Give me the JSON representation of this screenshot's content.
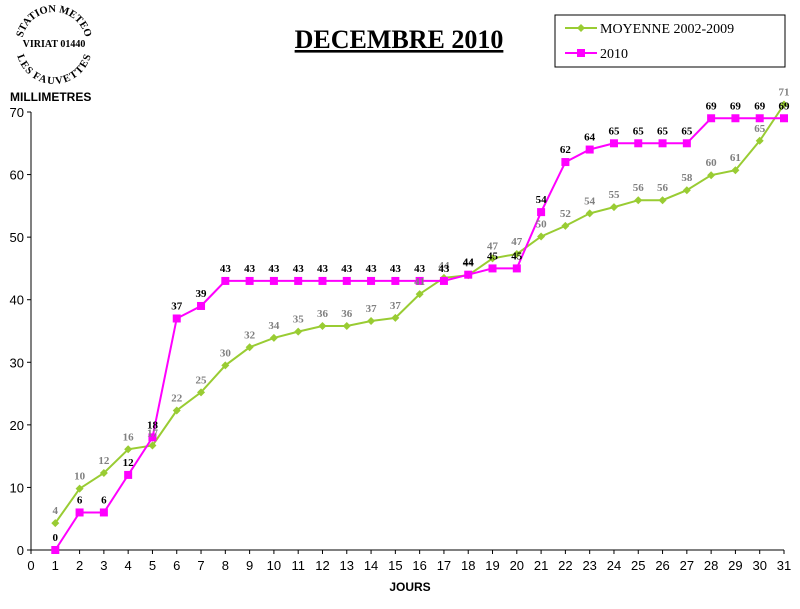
{
  "station_stamp": {
    "top_text": "STATION METEO",
    "middle_text": "VIRIAT 01440",
    "bottom_text": "LES FAUVETTES"
  },
  "chart_data": {
    "type": "line",
    "title": "DECEMBRE 2010",
    "xlabel": "JOURS",
    "ylabel": "MILLIMETRES",
    "xlim": [
      0,
      31
    ],
    "ylim": [
      0,
      70
    ],
    "x_ticks": [
      0,
      1,
      2,
      3,
      4,
      5,
      6,
      7,
      8,
      9,
      10,
      11,
      12,
      13,
      14,
      15,
      16,
      17,
      18,
      19,
      20,
      21,
      22,
      23,
      24,
      25,
      26,
      27,
      28,
      29,
      30,
      31
    ],
    "y_ticks": [
      0,
      10,
      20,
      30,
      40,
      50,
      60,
      70
    ],
    "grid": false,
    "legend_position": "top-right",
    "x": [
      1,
      2,
      3,
      4,
      5,
      6,
      7,
      8,
      9,
      10,
      11,
      12,
      13,
      14,
      15,
      16,
      17,
      18,
      19,
      20,
      21,
      22,
      23,
      24,
      25,
      26,
      27,
      28,
      29,
      30,
      31
    ],
    "series": [
      {
        "name": "MOYENNE 2002-2009",
        "color": "#99cc33",
        "label_color": "#808080",
        "marker": "diamond",
        "values": [
          4.3,
          9.8,
          12.3,
          16.1,
          16.7,
          22.3,
          25.2,
          29.5,
          32.4,
          33.9,
          34.9,
          35.8,
          35.8,
          36.6,
          37.1,
          40.9,
          43.5,
          43.9,
          46.6,
          47.3,
          50.1,
          51.8,
          53.8,
          54.8,
          55.9,
          55.9,
          57.5,
          59.9,
          60.7,
          65.4,
          71.2
        ],
        "labels": [
          "4",
          "10",
          "12",
          "16",
          "17",
          "22",
          "25",
          "30",
          "32",
          "34",
          "35",
          "36",
          "36",
          "37",
          "37",
          "41",
          "44",
          "44",
          "47",
          "47",
          "50",
          "52",
          "54",
          "55",
          "56",
          "56",
          "58",
          "60",
          "61",
          "65",
          "71"
        ]
      },
      {
        "name": "2010",
        "color": "#ff00ff",
        "label_color": "#000000",
        "marker": "square",
        "values": [
          0,
          6,
          6,
          12,
          18,
          37,
          39,
          43,
          43,
          43,
          43,
          43,
          43,
          43,
          43,
          43,
          43,
          44,
          45,
          45,
          54,
          62,
          64,
          65,
          65,
          65,
          65,
          69,
          69,
          69,
          69
        ],
        "labels": [
          "0",
          "6",
          "6",
          "12",
          "18",
          "37",
          "39",
          "43",
          "43",
          "43",
          "43",
          "43",
          "43",
          "43",
          "43",
          "43",
          "43",
          "44",
          "45",
          "45",
          "54",
          "62",
          "64",
          "65",
          "65",
          "65",
          "65",
          "69",
          "69",
          "69",
          "69"
        ]
      }
    ]
  }
}
